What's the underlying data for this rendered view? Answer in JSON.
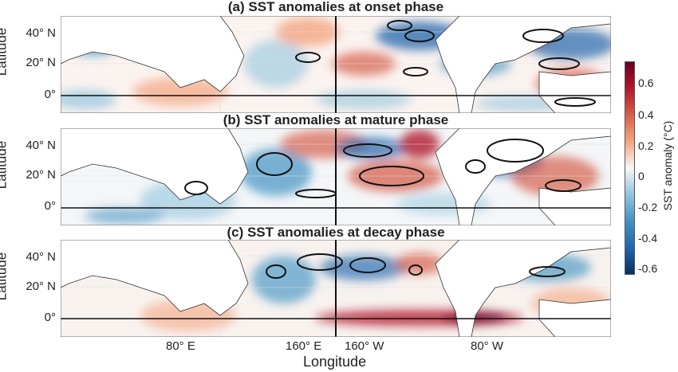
{
  "panels": [
    {
      "title": "(a) SST anomalies at onset phase",
      "ylabel": "Latitude",
      "yticks": [
        "40° N",
        "20° N",
        "0°"
      ]
    },
    {
      "title": "(b) SST anomalies at mature phase",
      "ylabel": "Latitude",
      "yticks": [
        "40° N",
        "20° N",
        "0°"
      ]
    },
    {
      "title": "(c) SST anomalies at decay phase",
      "ylabel": "Latitude",
      "yticks": [
        "40° N",
        "20° N",
        "0°"
      ]
    }
  ],
  "xticks": [
    "80° E",
    "160° E",
    "160° W",
    "80° W"
  ],
  "xlabel": "Longitude",
  "colorbar": {
    "label": "SST anomaly (°C)",
    "ticks": [
      "0.6",
      "0.4",
      "0.2",
      "0",
      "-0.2",
      "-0.4",
      "-0.6"
    ],
    "colors": [
      "#053061",
      "#2166ac",
      "#4393c3",
      "#92c5de",
      "#f7f7f7",
      "#f4a582",
      "#d6604d",
      "#b2182b",
      "#67001f"
    ]
  }
}
